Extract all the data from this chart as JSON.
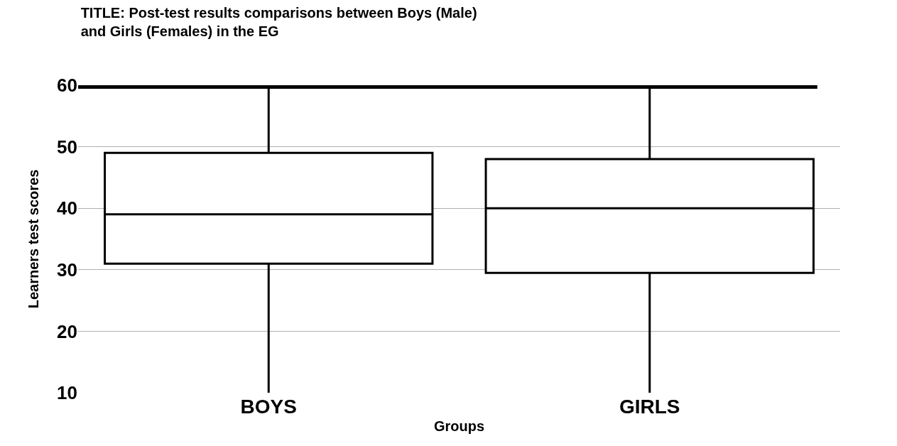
{
  "chart_data": {
    "type": "box",
    "title": "TITLE: Post-test results comparisons between Boys (Male)\nand Girls (Females) in the EG",
    "xlabel": "Groups",
    "ylabel": "Learners test scores",
    "categories": [
      "BOYS",
      "GIRLS"
    ],
    "boxes": [
      {
        "low": 10,
        "q1": 31,
        "median": 39,
        "q3": 49,
        "high": 60
      },
      {
        "low": 10,
        "q1": 29.5,
        "median": 40,
        "q3": 48,
        "high": 60
      }
    ],
    "color": "#000000",
    "ylim": [
      10,
      60
    ],
    "yticks": [
      10,
      20,
      30,
      40,
      50,
      60
    ],
    "grid": "y",
    "ref_lines": [
      {
        "axis": "y",
        "value": 60,
        "color": "#000000"
      }
    ]
  }
}
